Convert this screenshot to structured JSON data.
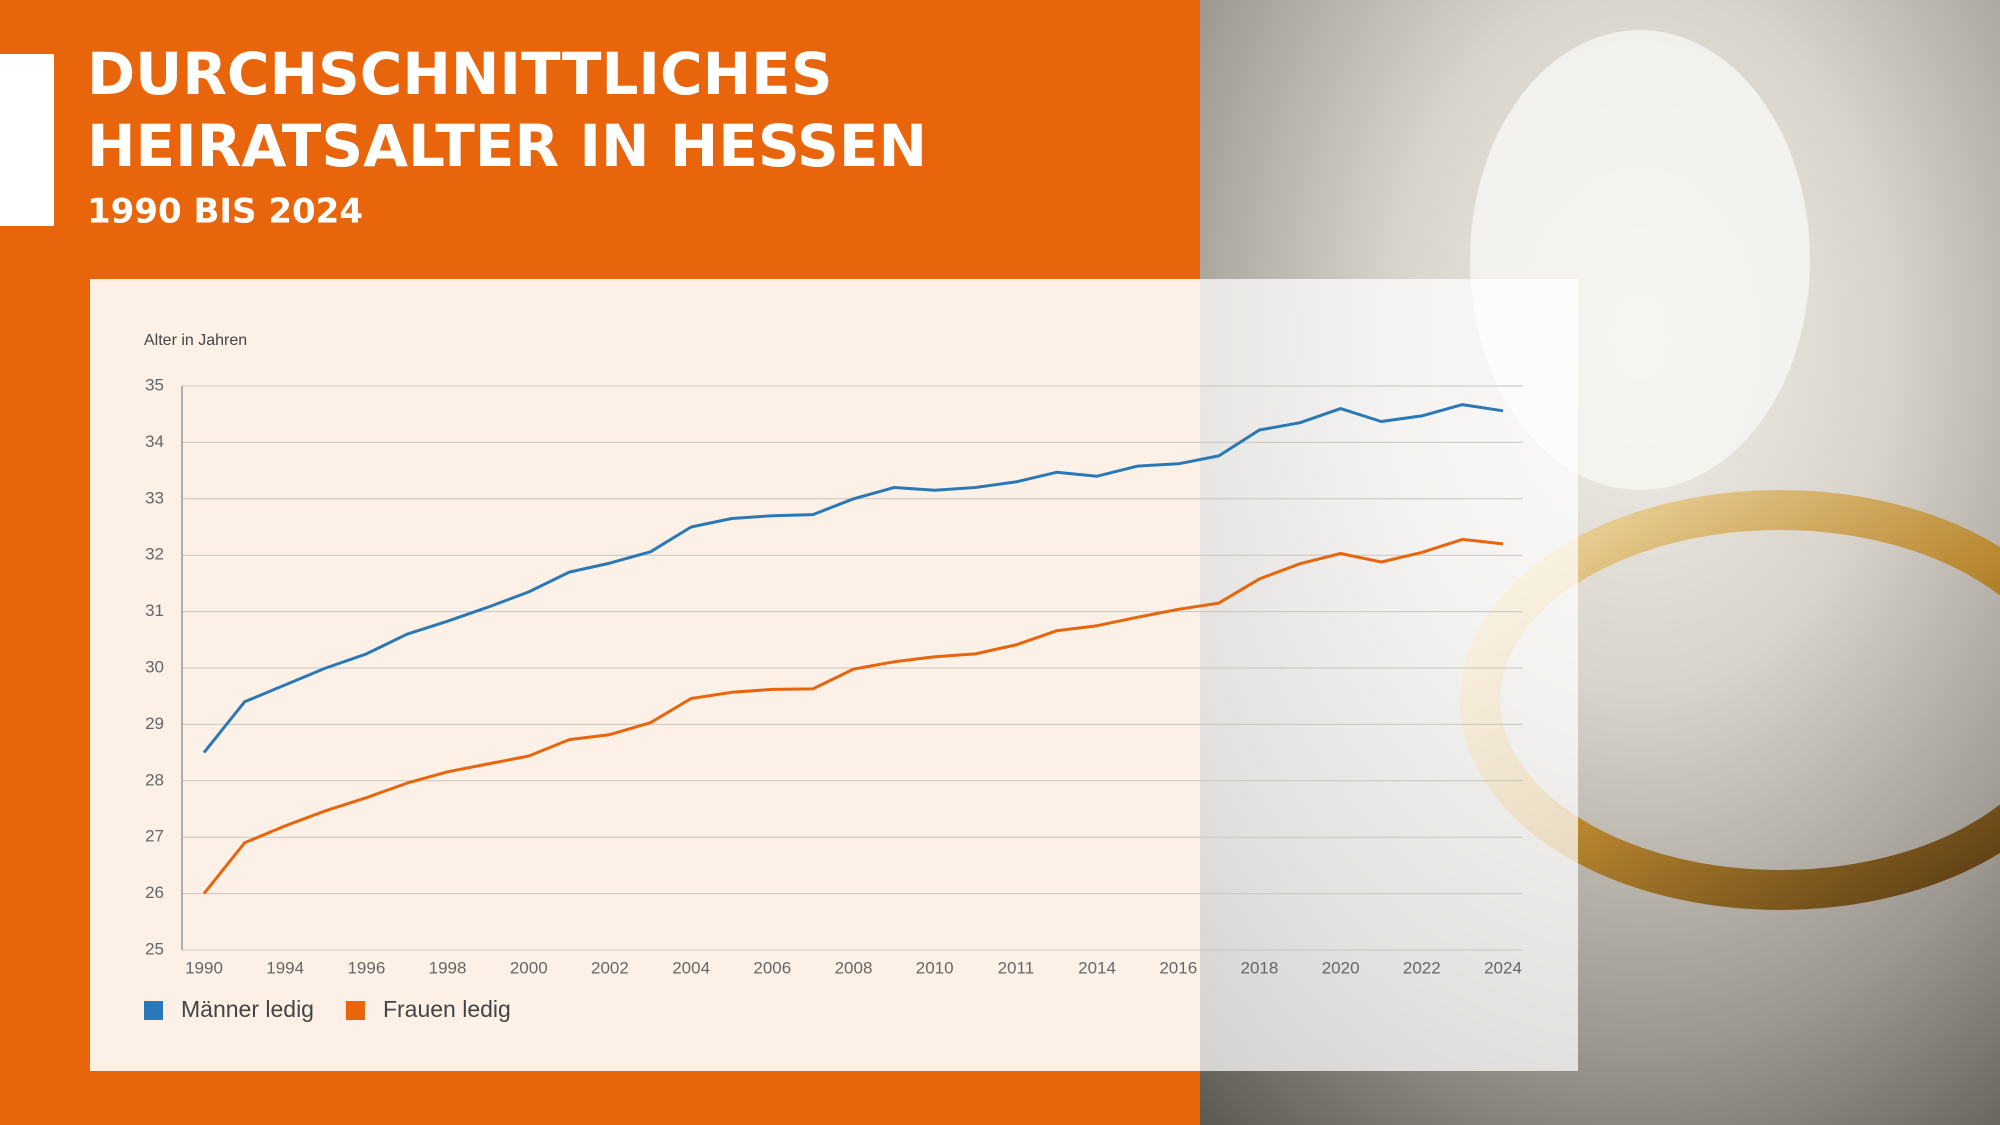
{
  "chart_data": {
    "type": "line",
    "title": [
      "DURCHSCHNITTLICHES",
      "HEIRATSALTER IN HESSEN"
    ],
    "subtitle": "1990 BIS 2024",
    "y_label": "Alter in Jahren",
    "categories": [
      "1990",
      null,
      "1994",
      null,
      "1996",
      null,
      "1998",
      null,
      "2000",
      null,
      "2002",
      null,
      "2004",
      null,
      "2006",
      null,
      "2008",
      null,
      "2010",
      null,
      "2011",
      null,
      "2014",
      null,
      "2016",
      null,
      "2018",
      null,
      "2020",
      null,
      "2022",
      null,
      "2024"
    ],
    "series": [
      {
        "name": "Männer ledig",
        "color": "#2a78b5",
        "values": [
          28.5,
          29.4,
          29.7,
          30.0,
          30.25,
          30.6,
          30.83,
          31.08,
          31.35,
          31.7,
          31.86,
          32.06,
          32.5,
          32.65,
          32.7,
          32.72,
          33.0,
          33.2,
          33.15,
          33.2,
          33.3,
          33.47,
          33.4,
          33.58,
          33.62,
          33.76,
          34.22,
          34.35,
          34.6,
          34.37,
          34.47,
          34.67,
          34.56
        ]
      },
      {
        "name": "Frauen ledig",
        "color": "#e8650c",
        "values": [
          26.0,
          26.9,
          27.2,
          27.47,
          27.7,
          27.96,
          28.16,
          28.3,
          28.44,
          28.73,
          28.82,
          29.03,
          29.46,
          29.57,
          29.62,
          29.63,
          29.98,
          30.11,
          30.2,
          30.25,
          30.41,
          30.66,
          30.75,
          30.9,
          31.04,
          31.15,
          31.58,
          31.85,
          32.03,
          31.88,
          32.05,
          32.28,
          32.2
        ]
      }
    ],
    "ylim": [
      25,
      35
    ],
    "yticks": [
      25,
      26,
      27,
      28,
      29,
      30,
      31,
      32,
      33,
      34,
      35
    ],
    "grid": true,
    "legend": "bottom-left"
  }
}
